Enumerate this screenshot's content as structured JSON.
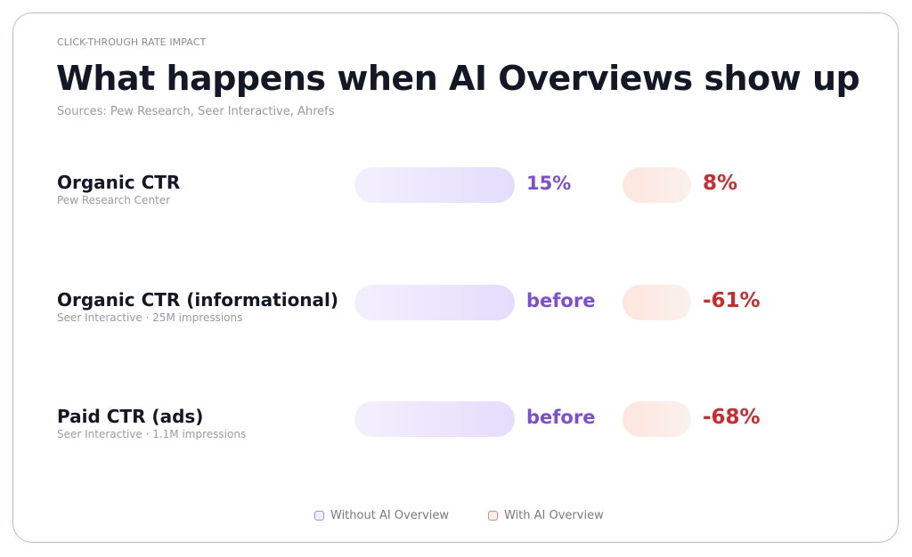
{
  "eyebrow": "CLICK-THROUGH RATE IMPACT",
  "title": "What happens when AI Overviews show up",
  "sources": "Sources: Pew Research, Seer Interactive, Ahrefs",
  "rows": [
    {
      "label": "Organic CTR",
      "sub": "Pew Research Center",
      "before": "15%",
      "after": "8%"
    },
    {
      "label": "Organic CTR (informational)",
      "sub": "Seer Interactive · 25M impressions",
      "before": "before",
      "after": "-61%"
    },
    {
      "label": "Paid CTR (ads)",
      "sub": "Seer Interactive · 1.1M impressions",
      "before": "before",
      "after": "-68%"
    }
  ],
  "legend": {
    "without": "Without AI Overview",
    "with": "With AI Overview"
  },
  "colors": {
    "without": "#7c4ddb",
    "with": "#d1282c",
    "border": "#c7b2de"
  },
  "chart_data": {
    "type": "bar",
    "title": "What happens when AI Overviews show up",
    "categories": [
      "Organic CTR",
      "Organic CTR (informational)",
      "Paid CTR (ads)"
    ],
    "series": [
      {
        "name": "Without AI Overview",
        "labels": [
          "15%",
          "before",
          "before"
        ]
      },
      {
        "name": "With AI Overview",
        "labels": [
          "8%",
          "-61%",
          "-68%"
        ]
      }
    ],
    "legend": "bottom"
  }
}
